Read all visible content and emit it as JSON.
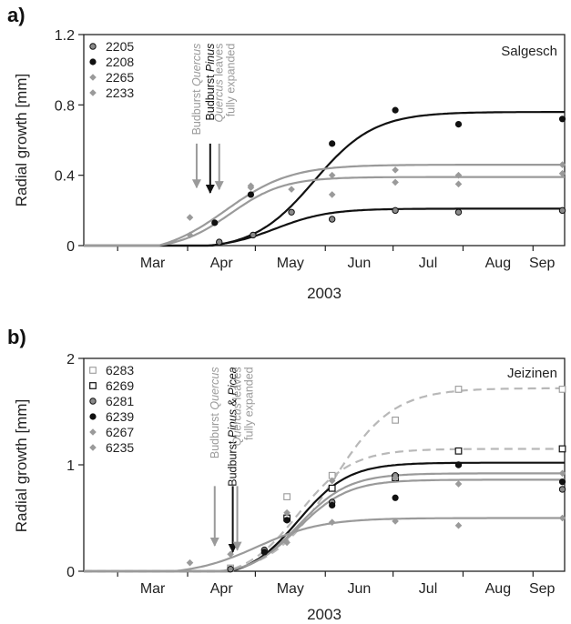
{
  "colors": {
    "black": "#111111",
    "gray": "#9a9a9a",
    "light": "#b8b8b8"
  },
  "chart_data": [
    {
      "type": "scatter",
      "panel_label": "a)",
      "site": "Salgesch",
      "xlabel": "2003",
      "ylabel": "Radial growth [mm]",
      "month_labels": [
        "Mar",
        "Apr",
        "May",
        "Jun",
        "Jul",
        "Aug",
        "Sep"
      ],
      "month_tick_doy": [
        60,
        91,
        121,
        152,
        182,
        213,
        244
      ],
      "xlim": [
        45,
        258
      ],
      "ylim": [
        0,
        1.2
      ],
      "yticks": [
        "0",
        "0.4",
        "0.8",
        "1.2"
      ],
      "series": [
        {
          "name": "2205",
          "marker": "circle-gray",
          "color": "#111111",
          "points": [
            [
              105,
              0.02
            ],
            [
              120,
              0.06
            ],
            [
              137,
              0.19
            ],
            [
              155,
              0.15
            ],
            [
              183,
              0.2
            ],
            [
              211,
              0.19
            ],
            [
              257,
              0.2
            ]
          ],
          "fit": {
            "asym": 0.21,
            "k": 0.085,
            "t0": 130,
            "start": 100,
            "dash": false,
            "color": "#111111"
          }
        },
        {
          "name": "2208",
          "marker": "circle-black",
          "color": "#111111",
          "points": [
            [
              103,
              0.13
            ],
            [
              119,
              0.29
            ],
            [
              155,
              0.58
            ],
            [
              183,
              0.77
            ],
            [
              211,
              0.69
            ],
            [
              257,
              0.72
            ]
          ],
          "fit": {
            "asym": 0.76,
            "k": 0.075,
            "t0": 147,
            "start": 102,
            "dash": false,
            "color": "#111111"
          }
        },
        {
          "name": "2265",
          "marker": "diamond",
          "color": "#9a9a9a",
          "points": [
            [
              92,
              0.06
            ],
            [
              119,
              0.33
            ],
            [
              137,
              0.32
            ],
            [
              155,
              0.29
            ],
            [
              183,
              0.36
            ],
            [
              211,
              0.35
            ],
            [
              257,
              0.41
            ]
          ],
          "fit": {
            "asym": 0.39,
            "k": 0.085,
            "t0": 110,
            "start": 78,
            "dash": false,
            "color": "#9a9a9a"
          }
        },
        {
          "name": "2233",
          "marker": "diamond",
          "color": "#9a9a9a",
          "points": [
            [
              92,
              0.16
            ],
            [
              119,
              0.34
            ],
            [
              155,
              0.4
            ],
            [
              183,
              0.43
            ],
            [
              211,
              0.4
            ],
            [
              257,
              0.46
            ]
          ],
          "fit": {
            "asym": 0.46,
            "k": 0.07,
            "t0": 108,
            "start": 78,
            "dash": false,
            "color": "#9a9a9a"
          }
        }
      ],
      "annotations": [
        {
          "id": "budburst-quercus",
          "pre": "Budburst ",
          "em": "Quercus",
          "post": "",
          "color": "#9a9a9a",
          "doy": 95,
          "y_text_top": 1.15,
          "y_arrow_top": 0.58,
          "y_arrow_bottom": 0.33
        },
        {
          "id": "budburst-pinus",
          "pre": "Budburst ",
          "em": "Pinus",
          "post": "",
          "color": "#111111",
          "doy": 101,
          "y_text_top": 1.15,
          "y_arrow_top": 0.58,
          "y_arrow_bottom": 0.3
        },
        {
          "id": "quercus-leaves",
          "pre": "",
          "em": "Quercus",
          "post": " leaves",
          "line2": "fully expanded",
          "color": "#9a9a9a",
          "doy": 105,
          "y_text_top": 1.15,
          "y_arrow_top": 0.58,
          "y_arrow_bottom": 0.32
        }
      ]
    },
    {
      "type": "scatter",
      "panel_label": "b)",
      "site": "Jeizinen",
      "xlabel": "2003",
      "ylabel": "Radial growth [mm]",
      "month_labels": [
        "Mar",
        "Apr",
        "May",
        "Jun",
        "Jul",
        "Aug",
        "Sep"
      ],
      "month_tick_doy": [
        60,
        91,
        121,
        152,
        182,
        213,
        244
      ],
      "xlim": [
        45,
        258
      ],
      "ylim": [
        0,
        2
      ],
      "yticks": [
        "0",
        "1",
        "2"
      ],
      "series": [
        {
          "name": "6283",
          "marker": "square-open-gray",
          "color": "#b8b8b8",
          "points": [
            [
              110,
              0.03
            ],
            [
              135,
              0.7
            ],
            [
              155,
              0.9
            ],
            [
              183,
              1.42
            ],
            [
              211,
              1.71
            ],
            [
              257,
              1.71
            ]
          ],
          "fit": {
            "asym": 1.72,
            "k": 0.075,
            "t0": 155,
            "start": 105,
            "dash": true,
            "color": "#b8b8b8"
          }
        },
        {
          "name": "6269",
          "marker": "square-open-black",
          "color": "#111111",
          "points": [
            [
              135,
              0.5
            ],
            [
              155,
              0.78
            ],
            [
              183,
              0.88
            ],
            [
              211,
              1.13
            ],
            [
              257,
              1.15
            ]
          ],
          "fit": {
            "asym": 1.15,
            "k": 0.085,
            "t0": 140,
            "start": 108,
            "dash": true,
            "color": "#b8b8b8"
          }
        },
        {
          "name": "6281",
          "marker": "circle-gray",
          "color": "#111111",
          "points": [
            [
              110,
              0.02
            ],
            [
              125,
              0.2
            ],
            [
              155,
              0.65
            ],
            [
              183,
              0.9
            ],
            [
              211,
              1.0
            ],
            [
              257,
              0.77
            ]
          ],
          "fit": {
            "asym": 0.92,
            "k": 0.09,
            "t0": 140,
            "start": 110,
            "dash": false,
            "color": "#9a9a9a"
          }
        },
        {
          "name": "6239",
          "marker": "circle-black",
          "color": "#111111",
          "points": [
            [
              125,
              0.18
            ],
            [
              135,
              0.48
            ],
            [
              155,
              0.62
            ],
            [
              183,
              0.69
            ],
            [
              211,
              1.0
            ],
            [
              257,
              0.84
            ]
          ],
          "fit": {
            "asym": 1.02,
            "k": 0.09,
            "t0": 140,
            "start": 110,
            "dash": false,
            "color": "#111111"
          }
        },
        {
          "name": "6267",
          "marker": "diamond",
          "color": "#9a9a9a",
          "points": [
            [
              92,
              0.08
            ],
            [
              110,
              0.16
            ],
            [
              135,
              0.27
            ],
            [
              155,
              0.46
            ],
            [
              183,
              0.47
            ],
            [
              211,
              0.43
            ],
            [
              257,
              0.5
            ]
          ],
          "fit": {
            "asym": 0.5,
            "k": 0.07,
            "t0": 122,
            "start": 85,
            "dash": false,
            "color": "#9a9a9a"
          }
        },
        {
          "name": "6235",
          "marker": "diamond",
          "color": "#9a9a9a",
          "points": [
            [
              135,
              0.55
            ],
            [
              155,
              0.85
            ],
            [
              183,
              0.88
            ],
            [
              211,
              0.82
            ],
            [
              257,
              0.92
            ]
          ],
          "fit": {
            "asym": 0.86,
            "k": 0.09,
            "t0": 140,
            "start": 108,
            "dash": false,
            "color": "#9a9a9a"
          }
        }
      ],
      "annotations": [
        {
          "id": "budburst-quercus",
          "pre": "Budburst ",
          "em": "Quercus",
          "post": "",
          "color": "#9a9a9a",
          "doy": 103,
          "y_text_top": 1.92,
          "y_arrow_top": 0.8,
          "y_arrow_bottom": 0.24
        },
        {
          "id": "budburst-pinus-picea",
          "pre": "Budburst ",
          "em": "Pinus",
          "post": " & ",
          "em2": "Picea",
          "color": "#111111",
          "doy": 111,
          "y_text_top": 1.92,
          "y_arrow_top": 0.8,
          "y_arrow_bottom": 0.18
        },
        {
          "id": "quercus-leaves",
          "pre": "",
          "em": "Quercus",
          "post": " leaves",
          "line2": "fully expanded",
          "color": "#9a9a9a",
          "doy": 113,
          "y_text_top": 1.92,
          "y_arrow_top": 0.8,
          "y_arrow_bottom": 0.2
        }
      ]
    }
  ]
}
